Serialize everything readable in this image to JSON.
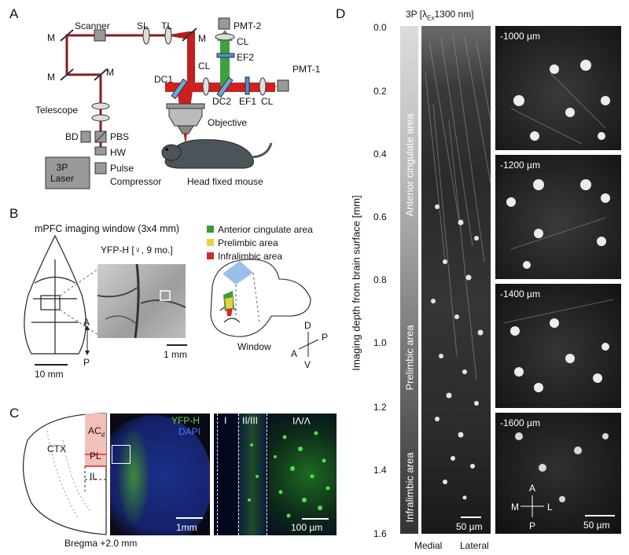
{
  "panels": {
    "a": "A",
    "b": "B",
    "c": "C",
    "d": "D"
  },
  "panel_a": {
    "scanner": "Scanner",
    "sl": "SL",
    "tl": "TL",
    "m": "M",
    "pmt2": "PMT-2",
    "pmt1": "PMT-1",
    "cl": "CL",
    "ef2": "EF2",
    "ef1": "EF1",
    "dc1": "DC1",
    "dc2": "DC2",
    "telescope": "Telescope",
    "objective": "Objective",
    "bd": "BD",
    "pbs": "PBS",
    "hw": "HW",
    "laser": "3P\nLaser",
    "pulse": "Pulse",
    "compressor": "Compressor",
    "mouse": "Head fixed mouse"
  },
  "panel_b": {
    "window_title": "mPFC imaging window (3x4 mm)",
    "yfp": "YFP-H  [♀, 9 mo.]",
    "legend": [
      {
        "label": "Anterior cingulate area",
        "color": "#3a9a3a"
      },
      {
        "label": "Prelimbic area",
        "color": "#e6d23a"
      },
      {
        "label": "Infralimbic area",
        "color": "#d02a2a"
      }
    ],
    "scale_skull": "10 mm",
    "scale_photo": "1 mm",
    "a": "A",
    "p": "P",
    "d": "D",
    "v": "V",
    "window": "Window"
  },
  "panel_c": {
    "ctx": "CTX",
    "acc": "AC",
    "acc_sub": "d",
    "pl": "PL",
    "il": "IL",
    "bregma": "Bregma +2.0 mm",
    "yfp": "YFP-H",
    "dapi": "DAPI",
    "scale1": "1mm",
    "scale2": "100 µm",
    "layers": [
      "I",
      "II/III",
      "V/VI"
    ]
  },
  "panel_d": {
    "title": "3P [λ",
    "title_sub": "Ex",
    "title_end": "1300 nm]",
    "ylabel": "Imaging depth from brain surface [mm]",
    "ticks": [
      "0.0",
      "0.2",
      "0.4",
      "0.6",
      "0.8",
      "1.0",
      "1.2",
      "1.4",
      "1.6"
    ],
    "areas": [
      "Anterior cingulate area",
      "Prelimbic area",
      "Infralimbic area"
    ],
    "depths": [
      "-1000 µm",
      "-1200 µm",
      "-1400 µm",
      "-1600 µm"
    ],
    "scale_left": "50 µm",
    "scale_right": "50 µm",
    "medial": "Medial",
    "lateral": "Lateral",
    "compass": {
      "a": "A",
      "p": "P",
      "m": "M",
      "l": "L"
    }
  }
}
